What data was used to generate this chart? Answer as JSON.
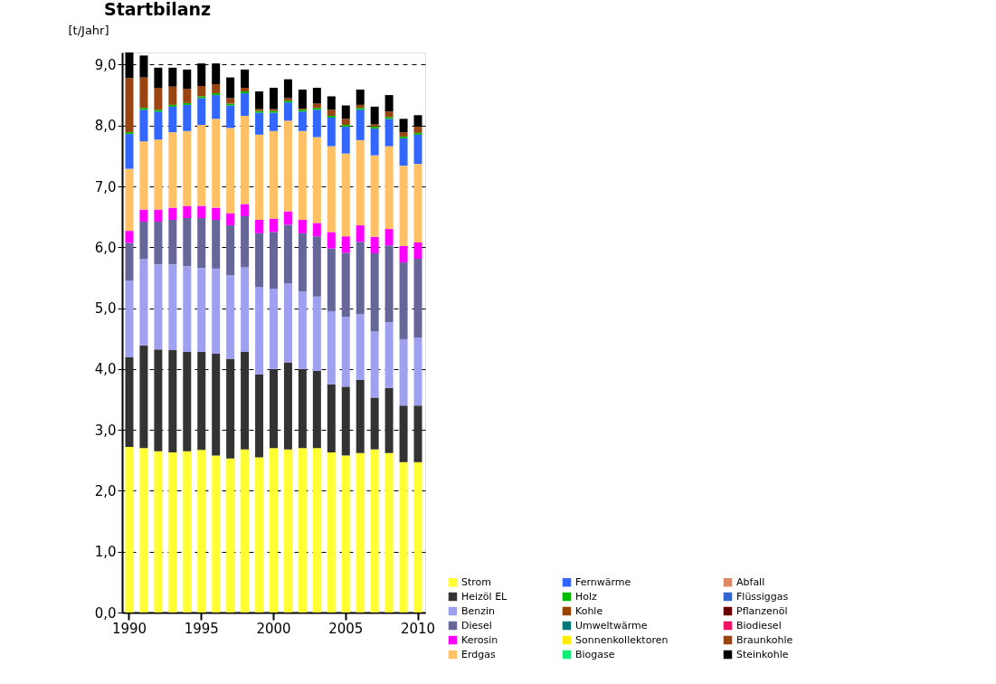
{
  "chart_data": {
    "type": "bar",
    "title": "Startbilanz",
    "ylabel": "[t/Jahr]",
    "stacked": true,
    "grid": "y",
    "legend": "bottom right",
    "categories": [
      "1990",
      null,
      null,
      null,
      null,
      "1995",
      null,
      null,
      null,
      null,
      "2000",
      null,
      null,
      null,
      null,
      "2005",
      null,
      null,
      null,
      null,
      "2010"
    ],
    "ylim": [
      0,
      9.2
    ],
    "yticks": [
      {
        "value": 0,
        "label": "0,0"
      },
      {
        "value": 1,
        "label": "1,0"
      },
      {
        "value": 2,
        "label": "2,0"
      },
      {
        "value": 3,
        "label": "3,0"
      },
      {
        "value": 4,
        "label": "4,0"
      },
      {
        "value": 5,
        "label": "5,0"
      },
      {
        "value": 6,
        "label": "6,0"
      },
      {
        "value": 7,
        "label": "7,0"
      },
      {
        "value": 8,
        "label": "8,0"
      },
      {
        "value": 9,
        "label": "9,0"
      }
    ],
    "series": [
      {
        "name": "Strom",
        "color": "#ffff33",
        "values": [
          2.72,
          2.7,
          2.65,
          2.63,
          2.65,
          2.67,
          2.58,
          2.53,
          2.68,
          2.55,
          2.7,
          2.68,
          2.7,
          2.7,
          2.63,
          2.58,
          2.62,
          2.68,
          2.62,
          2.47,
          2.47
        ]
      },
      {
        "name": "Heizöl EL",
        "color": "#333333",
        "values": [
          1.47,
          1.69,
          1.67,
          1.68,
          1.63,
          1.61,
          1.67,
          1.64,
          1.6,
          1.36,
          1.3,
          1.43,
          1.3,
          1.27,
          1.12,
          1.13,
          1.2,
          0.85,
          1.07,
          0.93,
          0.93
        ]
      },
      {
        "name": "Benzin",
        "color": "#a0a0f0",
        "values": [
          1.26,
          1.42,
          1.4,
          1.41,
          1.41,
          1.38,
          1.4,
          1.37,
          1.39,
          1.44,
          1.32,
          1.3,
          1.27,
          1.22,
          1.2,
          1.15,
          1.08,
          1.09,
          1.08,
          1.09,
          1.12
        ]
      },
      {
        "name": "Diesel",
        "color": "#666699",
        "values": [
          0.62,
          0.61,
          0.7,
          0.73,
          0.79,
          0.82,
          0.8,
          0.82,
          0.84,
          0.88,
          0.93,
          0.96,
          0.96,
          0.99,
          1.03,
          1.05,
          1.19,
          1.28,
          1.26,
          1.26,
          1.29
        ]
      },
      {
        "name": "Kerosin",
        "color": "#ff00ff",
        "values": [
          0.2,
          0.2,
          0.2,
          0.2,
          0.2,
          0.2,
          0.2,
          0.2,
          0.2,
          0.22,
          0.22,
          0.22,
          0.22,
          0.22,
          0.27,
          0.27,
          0.27,
          0.27,
          0.27,
          0.27,
          0.27
        ]
      },
      {
        "name": "Erdgas",
        "color": "#ffc066",
        "values": [
          1.02,
          1.12,
          1.15,
          1.24,
          1.23,
          1.33,
          1.46,
          1.4,
          1.45,
          1.4,
          1.44,
          1.49,
          1.46,
          1.41,
          1.41,
          1.36,
          1.4,
          1.34,
          1.36,
          1.32,
          1.29
        ]
      },
      {
        "name": "Fernwärme",
        "color": "#3366ff",
        "values": [
          0.57,
          0.52,
          0.46,
          0.42,
          0.43,
          0.44,
          0.39,
          0.37,
          0.37,
          0.36,
          0.3,
          0.3,
          0.32,
          0.45,
          0.47,
          0.44,
          0.5,
          0.44,
          0.45,
          0.45,
          0.48
        ]
      },
      {
        "name": "Holz",
        "color": "#00bb00",
        "values": [
          0.03,
          0.03,
          0.03,
          0.03,
          0.03,
          0.03,
          0.03,
          0.03,
          0.03,
          0.03,
          0.03,
          0.03,
          0.03,
          0.03,
          0.03,
          0.03,
          0.03,
          0.03,
          0.03,
          0.03,
          0.03
        ]
      },
      {
        "name": "Kohle",
        "color": "#994400",
        "values": [
          0,
          0,
          0,
          0,
          0,
          0,
          0,
          0,
          0,
          0,
          0,
          0,
          0,
          0,
          0,
          0,
          0,
          0,
          0,
          0,
          0
        ]
      },
      {
        "name": "Umweltwärme",
        "color": "#007777",
        "values": [
          0,
          0,
          0,
          0,
          0,
          0,
          0,
          0,
          0,
          0,
          0,
          0,
          0,
          0,
          0,
          0,
          0,
          0,
          0,
          0,
          0
        ]
      },
      {
        "name": "Sonnenkollektoren",
        "color": "#ffee00",
        "values": [
          0,
          0,
          0,
          0,
          0,
          0,
          0,
          0,
          0,
          0,
          0,
          0,
          0,
          0,
          0,
          0,
          0,
          0,
          0,
          0,
          0
        ]
      },
      {
        "name": "Biogase",
        "color": "#11ee77",
        "values": [
          0,
          0,
          0,
          0,
          0,
          0,
          0,
          0,
          0,
          0,
          0,
          0,
          0,
          0,
          0,
          0,
          0,
          0,
          0,
          0,
          0
        ]
      },
      {
        "name": "Abfall",
        "color": "#dd8866",
        "values": [
          0,
          0,
          0,
          0,
          0,
          0,
          0,
          0,
          0,
          0,
          0,
          0,
          0,
          0,
          0,
          0,
          0,
          0,
          0,
          0,
          0
        ]
      },
      {
        "name": "Flüssiggas",
        "color": "#3366cc",
        "values": [
          0,
          0,
          0,
          0,
          0,
          0,
          0,
          0,
          0,
          0,
          0,
          0,
          0,
          0,
          0,
          0,
          0,
          0,
          0,
          0,
          0
        ]
      },
      {
        "name": "Pflanzenöl",
        "color": "#660000",
        "values": [
          0,
          0,
          0,
          0,
          0,
          0,
          0,
          0,
          0,
          0,
          0,
          0,
          0,
          0,
          0,
          0,
          0,
          0,
          0,
          0,
          0
        ]
      },
      {
        "name": "Biodiesel",
        "color": "#ee1166",
        "values": [
          0,
          0,
          0,
          0,
          0,
          0,
          0,
          0,
          0,
          0,
          0,
          0,
          0,
          0,
          0,
          0,
          0,
          0,
          0,
          0,
          0
        ]
      },
      {
        "name": "Braunkohle",
        "color": "#994411",
        "values": [
          0.89,
          0.5,
          0.36,
          0.3,
          0.23,
          0.17,
          0.15,
          0.09,
          0.06,
          0.03,
          0.03,
          0.04,
          0.02,
          0.07,
          0.1,
          0.1,
          0.05,
          0.04,
          0.09,
          0.07,
          0.1
        ]
      },
      {
        "name": "Steinkohle",
        "color": "#000000",
        "values": [
          0.42,
          0.36,
          0.33,
          0.31,
          0.32,
          0.37,
          0.34,
          0.34,
          0.3,
          0.29,
          0.35,
          0.31,
          0.31,
          0.26,
          0.22,
          0.22,
          0.25,
          0.29,
          0.27,
          0.22,
          0.19
        ]
      }
    ]
  }
}
